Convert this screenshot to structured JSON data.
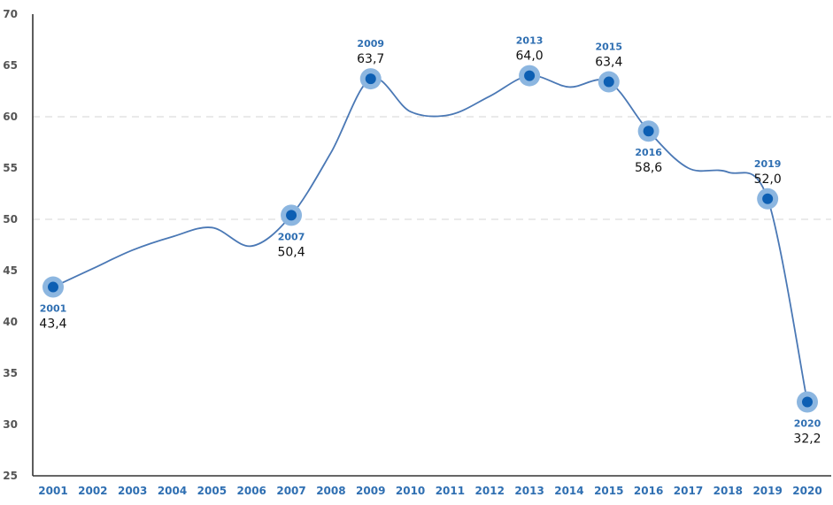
{
  "chart_data": {
    "type": "line",
    "title": "",
    "xlabel": "",
    "ylabel": "",
    "x": [
      "2001",
      "2002",
      "2003",
      "2004",
      "2005",
      "2006",
      "2007",
      "2008",
      "2009",
      "2010",
      "2011",
      "2012",
      "2013",
      "2014",
      "2015",
      "2016",
      "2017",
      "2018",
      "2019",
      "2020"
    ],
    "ylim": [
      25,
      70
    ],
    "yticks": [
      "25",
      "30",
      "35",
      "40",
      "45",
      "50",
      "55",
      "60",
      "65",
      "70"
    ],
    "gridlines": [
      50,
      60
    ],
    "legend": "none",
    "series": [
      {
        "values": [
          43.4,
          45.2,
          47.0,
          48.3,
          49.2,
          47.4,
          50.4,
          56.5,
          63.7,
          60.5,
          60.2,
          62.0,
          64.0,
          62.9,
          63.4,
          58.6,
          55.0,
          54.6,
          52.0,
          32.2
        ],
        "color": "#4a78b5"
      }
    ],
    "annotations": [
      {
        "year": "2001",
        "label": "43,4",
        "value": 43.4,
        "position": "below"
      },
      {
        "year": "2007",
        "label": "50,4",
        "value": 50.4,
        "position": "below"
      },
      {
        "year": "2009",
        "label": "63,7",
        "value": 63.7,
        "position": "above"
      },
      {
        "year": "2013",
        "label": "64,0",
        "value": 64.0,
        "position": "above"
      },
      {
        "year": "2015",
        "label": "63,4",
        "value": 63.4,
        "position": "above"
      },
      {
        "year": "2016",
        "label": "58,6",
        "value": 58.6,
        "position": "below"
      },
      {
        "year": "2019",
        "label": "52,0",
        "value": 52.0,
        "position": "above"
      },
      {
        "year": "2020",
        "label": "32,2",
        "value": 32.2,
        "position": "below"
      }
    ],
    "colors": {
      "line": "#4a78b5",
      "marker": "#0d5fb3",
      "marker_halo": "#8cb6e0",
      "year_label": "#2f6fb2",
      "axis": "#333333",
      "grid": "#d6d6d6"
    }
  }
}
